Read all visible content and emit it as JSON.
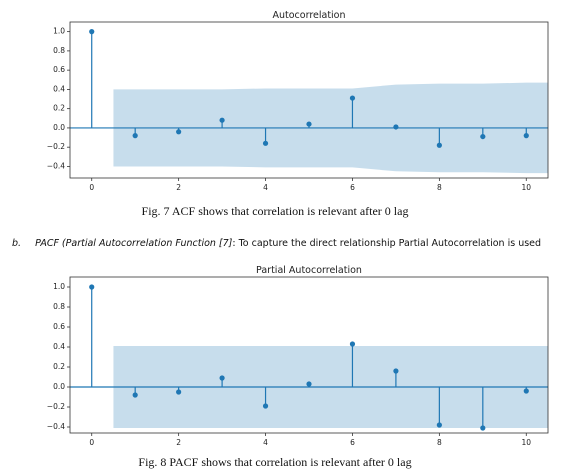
{
  "chart_data": [
    {
      "type": "stem",
      "title": "Autocorrelation",
      "color": "#1f77b4",
      "x": [
        0,
        1,
        2,
        3,
        4,
        5,
        6,
        7,
        8,
        9,
        10
      ],
      "values": [
        1.0,
        -0.08,
        -0.04,
        0.08,
        -0.16,
        0.04,
        0.31,
        0.01,
        -0.18,
        -0.09,
        -0.08
      ],
      "confidence_band": {
        "x": [
          0.5,
          1,
          2,
          3,
          4,
          5,
          6,
          7,
          8,
          9,
          10,
          10.5
        ],
        "upper": [
          0.4,
          0.4,
          0.4,
          0.4,
          0.41,
          0.41,
          0.41,
          0.45,
          0.46,
          0.46,
          0.47,
          0.47
        ],
        "lower": [
          -0.4,
          -0.4,
          -0.4,
          -0.4,
          -0.41,
          -0.41,
          -0.41,
          -0.45,
          -0.46,
          -0.46,
          -0.47,
          -0.47
        ]
      },
      "xlim": [
        -0.5,
        10.5
      ],
      "xticks": [
        0,
        2,
        4,
        6,
        8,
        10
      ],
      "ylim": [
        -0.52,
        1.1
      ],
      "yticks": [
        {
          "value": -0.4,
          "label": "−0.4"
        },
        {
          "value": -0.2,
          "label": "−0.2"
        },
        {
          "value": 0,
          "label": "0.0"
        },
        0.2,
        0.4,
        0.6,
        0.8,
        {
          "value": 1,
          "label": "1.0"
        }
      ]
    },
    {
      "type": "stem",
      "title": "Partial Autocorrelation",
      "color": "#1f77b4",
      "x": [
        0,
        1,
        2,
        3,
        4,
        5,
        6,
        7,
        8,
        9,
        10
      ],
      "values": [
        1.0,
        -0.08,
        -0.05,
        0.09,
        -0.19,
        0.03,
        0.43,
        0.16,
        -0.38,
        -0.41,
        -0.04
      ],
      "confidence_band": {
        "x": [
          0.5,
          10.5
        ],
        "upper": [
          0.41,
          0.41
        ],
        "lower": [
          -0.41,
          -0.41
        ]
      },
      "xlim": [
        -0.5,
        10.5
      ],
      "xticks": [
        0,
        2,
        4,
        6,
        8,
        10
      ],
      "ylim": [
        -0.46,
        1.1
      ],
      "yticks": [
        {
          "value": -0.4,
          "label": "−0.4"
        },
        {
          "value": -0.2,
          "label": "−0.2"
        },
        {
          "value": 0,
          "label": "0.0"
        },
        0.2,
        0.4,
        0.6,
        0.8,
        {
          "value": 1,
          "label": "1.0"
        }
      ]
    }
  ],
  "captions": [
    "Fig. 7 ACF shows that correlation is relevant after 0 lag",
    "Fig. 8 PACF shows that correlation is relevant after 0 lag"
  ],
  "paragraph": {
    "marker": "b.",
    "term": "PACF (Partial Autocorrelation Function [7]",
    "text": ": To capture the direct relationship Partial Autocorrelation is used"
  }
}
